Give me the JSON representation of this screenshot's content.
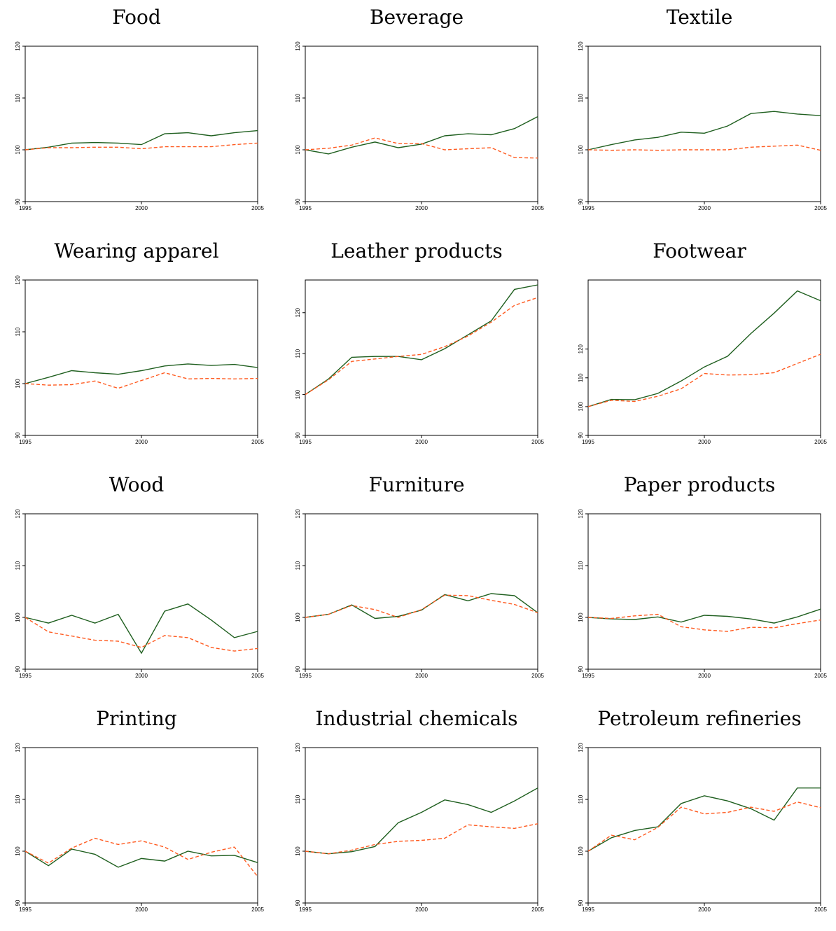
{
  "series_colors": {
    "solid": "#1f5f1f",
    "dashed": "#ff5a1f"
  },
  "chart_data": [
    {
      "type": "line",
      "title": "Food",
      "x": [
        1995,
        1996,
        1997,
        1998,
        1999,
        2000,
        2001,
        2002,
        2003,
        2004,
        2005
      ],
      "xticks": [
        1995,
        2000,
        2005
      ],
      "yticks": [
        90,
        100,
        110,
        120
      ],
      "ylim": [
        90,
        120
      ],
      "series": [
        {
          "values": [
            100,
            100.5,
            101.3,
            101.4,
            101.3,
            101.0,
            103.1,
            103.3,
            102.7,
            103.3,
            103.7
          ]
        },
        {
          "values": [
            100,
            100.4,
            100.4,
            100.5,
            100.5,
            100.2,
            100.6,
            100.6,
            100.6,
            101.0,
            101.3
          ]
        }
      ]
    },
    {
      "type": "line",
      "title": "Beverage",
      "x": [
        1995,
        1996,
        1997,
        1998,
        1999,
        2000,
        2001,
        2002,
        2003,
        2004,
        2005
      ],
      "xticks": [
        1995,
        2000,
        2005
      ],
      "yticks": [
        90,
        100,
        110,
        120
      ],
      "ylim": [
        90,
        120
      ],
      "series": [
        {
          "values": [
            100,
            99.2,
            100.5,
            101.5,
            100.4,
            101.1,
            102.7,
            103.1,
            102.9,
            104.1,
            106.4
          ]
        },
        {
          "values": [
            100,
            100.3,
            100.9,
            102.3,
            101.2,
            101.2,
            100.0,
            100.2,
            100.4,
            98.5,
            98.4
          ]
        }
      ]
    },
    {
      "type": "line",
      "title": "Textile",
      "x": [
        1995,
        1996,
        1997,
        1998,
        1999,
        2000,
        2001,
        2002,
        2003,
        2004,
        2005
      ],
      "xticks": [
        1995,
        2000,
        2005
      ],
      "yticks": [
        90,
        100,
        110,
        120
      ],
      "ylim": [
        90,
        120
      ],
      "series": [
        {
          "values": [
            100,
            101.0,
            101.9,
            102.4,
            103.4,
            103.2,
            104.6,
            107.0,
            107.4,
            106.9,
            106.6
          ]
        },
        {
          "values": [
            100,
            99.9,
            100.0,
            99.9,
            100.0,
            100.0,
            100.0,
            100.5,
            100.7,
            100.9,
            99.9
          ]
        }
      ]
    },
    {
      "type": "line",
      "title": "Wearing apparel",
      "x": [
        1995,
        1996,
        1997,
        1998,
        1999,
        2000,
        2001,
        2002,
        2003,
        2004,
        2005
      ],
      "xticks": [
        1995,
        2000,
        2005
      ],
      "yticks": [
        90,
        100,
        110,
        120
      ],
      "ylim": [
        90,
        120
      ],
      "series": [
        {
          "values": [
            100,
            101.2,
            102.5,
            102.1,
            101.8,
            102.5,
            103.4,
            103.8,
            103.5,
            103.7,
            103.1
          ]
        },
        {
          "values": [
            100,
            99.7,
            99.8,
            100.5,
            99.1,
            100.6,
            102.1,
            100.9,
            101.0,
            100.9,
            101.0
          ]
        }
      ]
    },
    {
      "type": "line",
      "title": "Leather products",
      "x": [
        1995,
        1996,
        1997,
        1998,
        1999,
        2000,
        2001,
        2002,
        2003,
        2004,
        2005
      ],
      "xticks": [
        1995,
        2000,
        2005
      ],
      "yticks": [
        90,
        100,
        110,
        120
      ],
      "ylim": [
        90,
        128
      ],
      "series": [
        {
          "values": [
            100,
            103.8,
            109.1,
            109.3,
            109.3,
            108.5,
            111.2,
            114.6,
            118.0,
            125.7,
            126.8
          ]
        },
        {
          "values": [
            100,
            103.6,
            108.1,
            108.7,
            109.3,
            109.8,
            111.7,
            114.3,
            117.7,
            121.8,
            123.7
          ]
        }
      ]
    },
    {
      "type": "line",
      "title": "Footwear",
      "x": [
        1995,
        1996,
        1997,
        1998,
        1999,
        2000,
        2001,
        2002,
        2003,
        2004,
        2005
      ],
      "xticks": [
        1995,
        2000,
        2005
      ],
      "yticks": [
        90,
        100,
        110,
        120
      ],
      "ylim": [
        90,
        144
      ],
      "series": [
        {
          "values": [
            100,
            102.5,
            102.4,
            104.6,
            108.9,
            113.8,
            117.5,
            125.4,
            132.5,
            140.2,
            136.8
          ]
        },
        {
          "values": [
            100,
            102.2,
            101.8,
            103.6,
            106.2,
            111.5,
            111.0,
            111.1,
            111.8,
            115.0,
            118.2
          ]
        }
      ]
    },
    {
      "type": "line",
      "title": "Wood",
      "x": [
        1995,
        1996,
        1997,
        1998,
        1999,
        2000,
        2001,
        2002,
        2003,
        2004,
        2005
      ],
      "xticks": [
        1995,
        2000,
        2005
      ],
      "yticks": [
        90,
        100,
        110,
        120
      ],
      "ylim": [
        90,
        120
      ],
      "series": [
        {
          "values": [
            100,
            98.9,
            100.4,
            98.9,
            100.6,
            93.1,
            101.2,
            102.6,
            99.5,
            96.1,
            97.3
          ]
        },
        {
          "values": [
            100,
            97.2,
            96.4,
            95.6,
            95.4,
            94.2,
            96.5,
            96.1,
            94.2,
            93.5,
            94.0
          ]
        }
      ]
    },
    {
      "type": "line",
      "title": "Furniture",
      "x": [
        1995,
        1996,
        1997,
        1998,
        1999,
        2000,
        2001,
        2002,
        2003,
        2004,
        2005
      ],
      "xticks": [
        1995,
        2000,
        2005
      ],
      "yticks": [
        90,
        100,
        110,
        120
      ],
      "ylim": [
        90,
        120
      ],
      "series": [
        {
          "values": [
            100,
            100.6,
            102.4,
            99.8,
            100.2,
            101.4,
            104.4,
            103.2,
            104.6,
            104.2,
            100.9
          ]
        },
        {
          "values": [
            100,
            100.6,
            102.3,
            101.5,
            100.0,
            101.5,
            104.3,
            104.2,
            103.3,
            102.5,
            100.9
          ]
        }
      ]
    },
    {
      "type": "line",
      "title": "Paper products",
      "x": [
        1995,
        1996,
        1997,
        1998,
        1999,
        2000,
        2001,
        2002,
        2003,
        2004,
        2005
      ],
      "xticks": [
        1995,
        2000,
        2005
      ],
      "yticks": [
        90,
        100,
        110,
        120
      ],
      "ylim": [
        90,
        120
      ],
      "series": [
        {
          "values": [
            100,
            99.7,
            99.6,
            100.1,
            99.1,
            100.4,
            100.2,
            99.7,
            98.9,
            100.1,
            101.6
          ]
        },
        {
          "values": [
            100,
            99.8,
            100.3,
            100.6,
            98.2,
            97.6,
            97.3,
            98.1,
            98.0,
            98.8,
            99.5
          ]
        }
      ]
    },
    {
      "type": "line",
      "title": "Printing",
      "x": [
        1995,
        1996,
        1997,
        1998,
        1999,
        2000,
        2001,
        2002,
        2003,
        2004,
        2005
      ],
      "xticks": [
        1995,
        2000,
        2005
      ],
      "yticks": [
        90,
        100,
        110,
        120
      ],
      "ylim": [
        90,
        120
      ],
      "series": [
        {
          "values": [
            100,
            97.2,
            100.4,
            99.4,
            96.9,
            98.6,
            98.1,
            100.0,
            99.1,
            99.2,
            97.8
          ]
        },
        {
          "values": [
            100,
            97.7,
            100.6,
            102.5,
            101.3,
            102.0,
            100.8,
            98.4,
            99.8,
            100.8,
            95.1
          ]
        }
      ]
    },
    {
      "type": "line",
      "title": "Industrial chemicals",
      "x": [
        1995,
        1996,
        1997,
        1998,
        1999,
        2000,
        2001,
        2002,
        2003,
        2004,
        2005
      ],
      "xticks": [
        1995,
        2000,
        2005
      ],
      "yticks": [
        90,
        100,
        110,
        120
      ],
      "ylim": [
        90,
        120
      ],
      "series": [
        {
          "values": [
            100,
            99.5,
            99.9,
            100.9,
            105.5,
            107.5,
            109.9,
            109.0,
            107.5,
            109.7,
            112.2
          ]
        },
        {
          "values": [
            100,
            99.5,
            100.2,
            101.3,
            101.9,
            102.1,
            102.5,
            105.1,
            104.7,
            104.4,
            105.3
          ]
        }
      ]
    },
    {
      "type": "line",
      "title": "Petroleum refineries",
      "x": [
        1995,
        1996,
        1997,
        1998,
        1999,
        2000,
        2001,
        2002,
        2003,
        2004,
        2005
      ],
      "xticks": [
        1995,
        2000,
        2005
      ],
      "yticks": [
        90,
        100,
        110,
        120
      ],
      "ylim": [
        90,
        120
      ],
      "series": [
        {
          "values": [
            100,
            102.6,
            104.0,
            104.7,
            109.2,
            110.7,
            109.7,
            108.2,
            106.0,
            112.2,
            112.2
          ]
        },
        {
          "values": [
            100,
            103.1,
            102.2,
            104.6,
            108.5,
            107.2,
            107.5,
            108.5,
            107.7,
            109.5,
            108.4
          ]
        }
      ]
    }
  ]
}
